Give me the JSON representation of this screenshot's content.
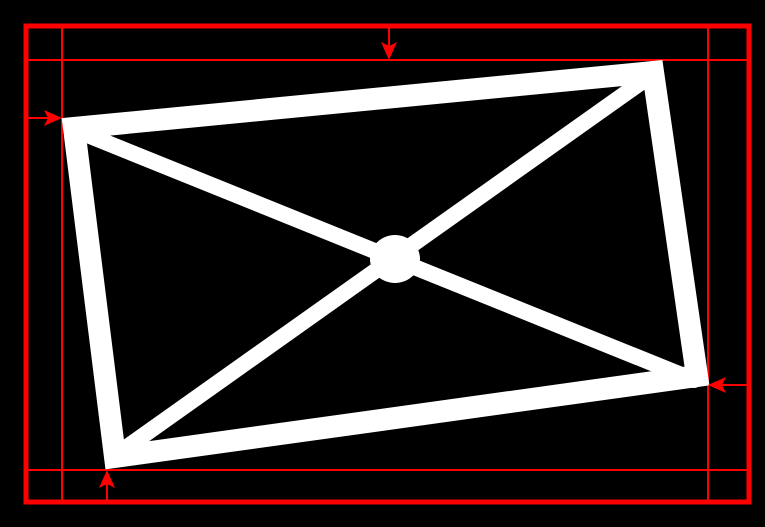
{
  "diagram": {
    "colors": {
      "background": "#000000",
      "frame": "#ff0000",
      "guide": "#ff0000",
      "arrow": "#ff0000",
      "rectangle": "#ffffff",
      "center_dot": "#ffffff"
    },
    "elements": {
      "outer_frame": "rectangle-outline",
      "guide_lines": "inner-bounding-guides",
      "rotated_rectangle": "white-rotated-rectangle",
      "diagonals": "two-diagonals",
      "center_marker": "center-dot",
      "arrows": [
        "top-arrow-down",
        "left-arrow-right",
        "right-arrow-left",
        "bottom-arrow-up"
      ]
    }
  }
}
